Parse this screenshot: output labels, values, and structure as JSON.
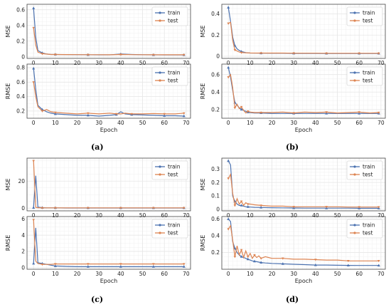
{
  "colors": {
    "train": "#4c72b0",
    "test": "#dd8452",
    "grid": "#e6e6e6",
    "axis": "#333333"
  },
  "panel_labels": [
    "(a)",
    "(b)",
    "(c)",
    "(d)"
  ],
  "chart_data": [
    {
      "panel": "(a)",
      "type": "line",
      "xlabel": "",
      "ylabel": "MSE",
      "xlim": [
        -3,
        72
      ],
      "ylim": [
        -0.02,
        0.67
      ],
      "xticks": [
        0,
        10,
        20,
        30,
        40,
        50,
        60,
        70
      ],
      "yticks": [
        0,
        0.2,
        0.4,
        0.6
      ],
      "legend": "top-right",
      "grid": true,
      "x": [
        0,
        1,
        2,
        4,
        6,
        8,
        10,
        15,
        20,
        25,
        30,
        35,
        40,
        45,
        50,
        55,
        60,
        65,
        69
      ],
      "series": [
        {
          "name": "train",
          "values": [
            0.62,
            0.25,
            0.08,
            0.05,
            0.035,
            0.03,
            0.03,
            0.028,
            0.027,
            0.026,
            0.025,
            0.025,
            0.035,
            0.03,
            0.026,
            0.025,
            0.024,
            0.024,
            0.024
          ]
        },
        {
          "name": "test",
          "values": [
            0.37,
            0.15,
            0.06,
            0.04,
            0.035,
            0.03,
            0.03,
            0.029,
            0.028,
            0.027,
            0.027,
            0.026,
            0.03,
            0.028,
            0.027,
            0.026,
            0.026,
            0.026,
            0.026
          ]
        }
      ]
    },
    {
      "panel": "(a)",
      "type": "line",
      "xlabel": "Epoch",
      "ylabel": "RMSE",
      "xlim": [
        -3,
        72
      ],
      "ylim": [
        0.1,
        0.85
      ],
      "xticks": [
        0,
        10,
        20,
        30,
        40,
        50,
        60,
        70
      ],
      "yticks": [
        0.2,
        0.4,
        0.6,
        0.8
      ],
      "legend": "top-right",
      "grid": true,
      "x": [
        0,
        1,
        2,
        4,
        6,
        8,
        10,
        15,
        20,
        25,
        30,
        35,
        38,
        40,
        42,
        45,
        50,
        55,
        60,
        65,
        69
      ],
      "series": [
        {
          "name": "train",
          "values": [
            0.79,
            0.5,
            0.28,
            0.22,
            0.19,
            0.17,
            0.16,
            0.15,
            0.14,
            0.14,
            0.13,
            0.14,
            0.15,
            0.19,
            0.16,
            0.15,
            0.145,
            0.14,
            0.135,
            0.135,
            0.13
          ]
        },
        {
          "name": "test",
          "values": [
            0.6,
            0.4,
            0.26,
            0.2,
            0.22,
            0.19,
            0.18,
            0.17,
            0.16,
            0.17,
            0.16,
            0.17,
            0.16,
            0.16,
            0.17,
            0.16,
            0.16,
            0.165,
            0.16,
            0.16,
            0.17
          ]
        }
      ]
    },
    {
      "panel": "(b)",
      "type": "line",
      "xlabel": "",
      "ylabel": "MSE",
      "xlim": [
        -3,
        72
      ],
      "ylim": [
        -0.02,
        0.49
      ],
      "xticks": [
        0,
        10,
        20,
        30,
        40,
        50,
        60,
        70
      ],
      "yticks": [
        0,
        0.2,
        0.4
      ],
      "legend": "top-right",
      "grid": true,
      "x": [
        0,
        1,
        2,
        3,
        4,
        5,
        6,
        8,
        10,
        15,
        20,
        25,
        30,
        35,
        40,
        45,
        50,
        55,
        60,
        65,
        69
      ],
      "series": [
        {
          "name": "train",
          "values": [
            0.46,
            0.33,
            0.18,
            0.1,
            0.07,
            0.055,
            0.045,
            0.035,
            0.03,
            0.029,
            0.028,
            0.028,
            0.027,
            0.027,
            0.027,
            0.026,
            0.026,
            0.026,
            0.026,
            0.026,
            0.026
          ]
        },
        {
          "name": "test",
          "values": [
            0.31,
            0.32,
            0.15,
            0.06,
            0.05,
            0.04,
            0.035,
            0.033,
            0.031,
            0.03,
            0.03,
            0.03,
            0.029,
            0.029,
            0.029,
            0.028,
            0.028,
            0.028,
            0.028,
            0.028,
            0.028
          ]
        }
      ]
    },
    {
      "panel": "(b)",
      "type": "line",
      "xlabel": "Epoch",
      "ylabel": "RMSE",
      "xlim": [
        -3,
        72
      ],
      "ylim": [
        0.1,
        0.72
      ],
      "xticks": [
        0,
        10,
        20,
        30,
        40,
        50,
        60,
        70
      ],
      "yticks": [
        0.2,
        0.4,
        0.6
      ],
      "legend": "top-right",
      "grid": true,
      "x": [
        0,
        1,
        2,
        3,
        4,
        5,
        6,
        7,
        8,
        9,
        10,
        12,
        15,
        20,
        25,
        30,
        35,
        40,
        45,
        50,
        55,
        60,
        65,
        69
      ],
      "series": [
        {
          "name": "train",
          "values": [
            0.68,
            0.57,
            0.42,
            0.28,
            0.25,
            0.22,
            0.2,
            0.19,
            0.18,
            0.17,
            0.165,
            0.16,
            0.16,
            0.155,
            0.155,
            0.155,
            0.155,
            0.155,
            0.155,
            0.155,
            0.155,
            0.155,
            0.155,
            0.155
          ]
        },
        {
          "name": "test",
          "values": [
            0.57,
            0.6,
            0.45,
            0.22,
            0.26,
            0.21,
            0.23,
            0.19,
            0.16,
            0.18,
            0.17,
            0.165,
            0.165,
            0.165,
            0.17,
            0.16,
            0.17,
            0.165,
            0.17,
            0.16,
            0.165,
            0.17,
            0.16,
            0.165
          ]
        }
      ]
    },
    {
      "panel": "(c)",
      "type": "line",
      "xlabel": "",
      "ylabel": "MSE",
      "xlim": [
        -3,
        72
      ],
      "ylim": [
        -2,
        37
      ],
      "xticks": [
        0,
        10,
        20,
        30,
        40,
        50,
        60,
        70
      ],
      "yticks": [
        0,
        20
      ],
      "legend": "top-right",
      "grid": true,
      "x": [
        0,
        1,
        2,
        4,
        6,
        8,
        10,
        15,
        20,
        25,
        30,
        35,
        40,
        45,
        50,
        55,
        60,
        65,
        69
      ],
      "series": [
        {
          "name": "train",
          "values": [
            0.3,
            24,
            0.8,
            0.3,
            0.2,
            0.2,
            0.2,
            0.1,
            0.1,
            0.1,
            0.1,
            0.1,
            0.1,
            0.1,
            0.1,
            0.1,
            0.1,
            0.1,
            0.1
          ]
        },
        {
          "name": "test",
          "values": [
            35,
            0.6,
            0.3,
            0.2,
            0.2,
            0.2,
            0.2,
            0.2,
            0.2,
            0.2,
            0.2,
            0.2,
            0.2,
            0.2,
            0.2,
            0.2,
            0.2,
            0.2,
            0.2
          ]
        }
      ]
    },
    {
      "panel": "(c)",
      "type": "line",
      "xlabel": "Epoch",
      "ylabel": "RMSE",
      "xlim": [
        -3,
        72
      ],
      "ylim": [
        -0.2,
        6.3
      ],
      "xticks": [
        0,
        10,
        20,
        30,
        40,
        50,
        60,
        70
      ],
      "yticks": [
        0,
        2,
        4,
        6
      ],
      "legend": "top-right",
      "grid": true,
      "x": [
        0,
        1,
        2,
        4,
        6,
        8,
        10,
        15,
        20,
        25,
        30,
        35,
        40,
        45,
        50,
        55,
        60,
        65,
        69
      ],
      "series": [
        {
          "name": "train",
          "values": [
            0.5,
            4.9,
            0.6,
            0.5,
            0.4,
            0.3,
            0.2,
            0.15,
            0.12,
            0.12,
            0.12,
            0.12,
            0.12,
            0.12,
            0.12,
            0.12,
            0.12,
            0.12,
            0.12
          ]
        },
        {
          "name": "test",
          "values": [
            5.9,
            0.8,
            0.5,
            0.4,
            0.4,
            0.4,
            0.45,
            0.45,
            0.45,
            0.45,
            0.45,
            0.45,
            0.45,
            0.45,
            0.45,
            0.45,
            0.45,
            0.45,
            0.45
          ]
        }
      ]
    },
    {
      "panel": "(d)",
      "type": "line",
      "xlabel": "",
      "ylabel": "MSE",
      "xlim": [
        -3,
        72
      ],
      "ylim": [
        -0.01,
        0.38
      ],
      "xticks": [
        0,
        10,
        20,
        30,
        40,
        50,
        60,
        70
      ],
      "yticks": [
        0,
        0.1,
        0.2,
        0.3
      ],
      "legend": "top-right",
      "grid": true,
      "x": [
        0,
        1,
        2,
        3,
        4,
        5,
        6,
        7,
        8,
        9,
        10,
        12,
        15,
        20,
        25,
        30,
        35,
        40,
        45,
        50,
        55,
        60,
        65,
        69
      ],
      "series": [
        {
          "name": "train",
          "values": [
            0.36,
            0.33,
            0.1,
            0.06,
            0.04,
            0.03,
            0.03,
            0.025,
            0.02,
            0.02,
            0.018,
            0.016,
            0.015,
            0.013,
            0.012,
            0.011,
            0.01,
            0.01,
            0.01,
            0.01,
            0.01,
            0.009,
            0.009,
            0.009
          ]
        },
        {
          "name": "test",
          "values": [
            0.23,
            0.26,
            0.12,
            0.03,
            0.08,
            0.04,
            0.06,
            0.03,
            0.05,
            0.04,
            0.04,
            0.035,
            0.03,
            0.025,
            0.025,
            0.02,
            0.02,
            0.02,
            0.02,
            0.02,
            0.018,
            0.018,
            0.018,
            0.018
          ]
        }
      ]
    },
    {
      "panel": "(d)",
      "type": "line",
      "xlabel": "Epoch",
      "ylabel": "RMSE",
      "xlim": [
        -3,
        72
      ],
      "ylim": [
        0.0,
        0.63
      ],
      "xticks": [
        0,
        10,
        20,
        30,
        40,
        50,
        60,
        70
      ],
      "yticks": [
        0.2,
        0.4,
        0.6
      ],
      "legend": "top-right",
      "grid": true,
      "x": [
        0,
        1,
        2,
        3,
        4,
        5,
        6,
        7,
        8,
        9,
        10,
        11,
        12,
        13,
        14,
        15,
        17,
        20,
        25,
        30,
        35,
        40,
        45,
        50,
        55,
        60,
        65,
        69
      ],
      "series": [
        {
          "name": "train",
          "values": [
            0.6,
            0.57,
            0.33,
            0.25,
            0.2,
            0.17,
            0.15,
            0.14,
            0.13,
            0.12,
            0.11,
            0.1,
            0.095,
            0.09,
            0.085,
            0.08,
            0.075,
            0.07,
            0.065,
            0.06,
            0.055,
            0.05,
            0.05,
            0.048,
            0.046,
            0.045,
            0.045,
            0.045
          ]
        },
        {
          "name": "test",
          "values": [
            0.48,
            0.52,
            0.35,
            0.15,
            0.28,
            0.17,
            0.23,
            0.14,
            0.22,
            0.15,
            0.19,
            0.13,
            0.17,
            0.14,
            0.16,
            0.13,
            0.15,
            0.13,
            0.13,
            0.12,
            0.12,
            0.115,
            0.11,
            0.11,
            0.1,
            0.1,
            0.1,
            0.1
          ]
        }
      ]
    }
  ]
}
